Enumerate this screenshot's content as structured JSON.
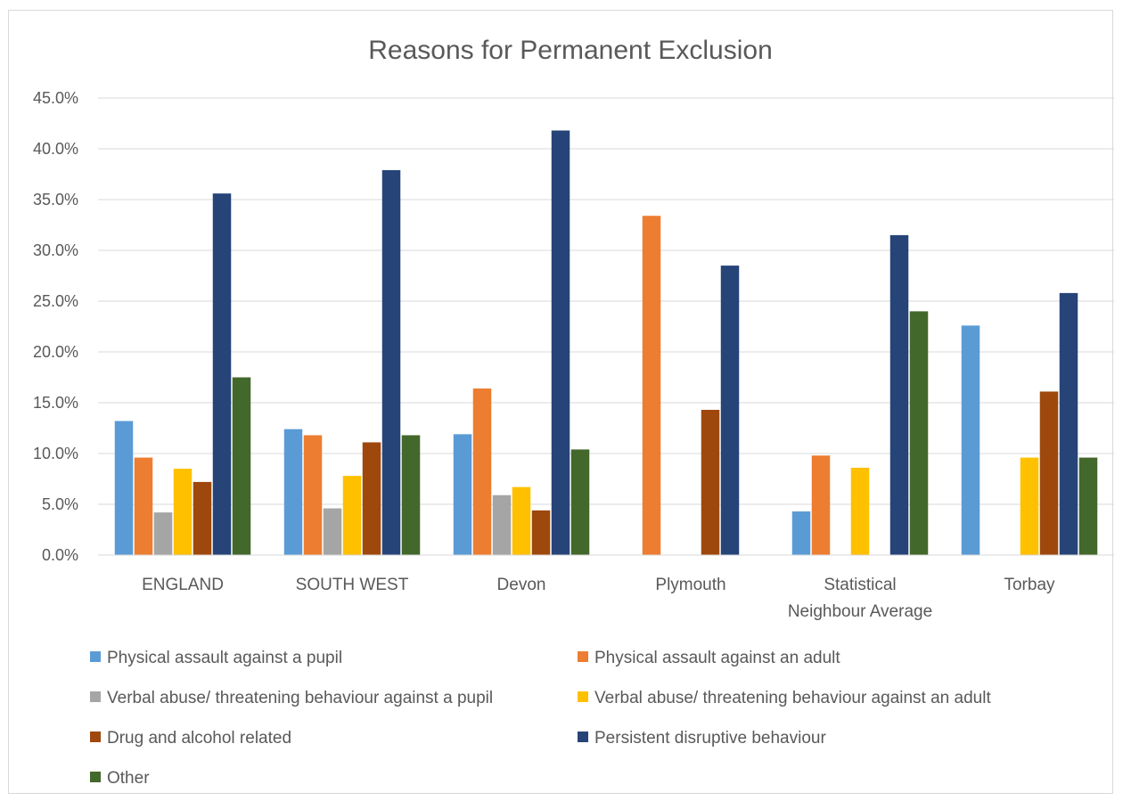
{
  "chart_data": {
    "type": "bar",
    "title": "Reasons for Permanent Exclusion",
    "categories": [
      [
        "ENGLAND"
      ],
      [
        "SOUTH WEST"
      ],
      [
        "Devon"
      ],
      [
        "Plymouth"
      ],
      [
        "Statistical",
        "Neighbour Average"
      ],
      [
        "Torbay"
      ]
    ],
    "ylim": [
      0,
      45
    ],
    "ytick_values": [
      0,
      5,
      10,
      15,
      20,
      25,
      30,
      35,
      40,
      45
    ],
    "ytick_labels": [
      "0.0%",
      "5.0%",
      "10.0%",
      "15.0%",
      "20.0%",
      "25.0%",
      "30.0%",
      "35.0%",
      "40.0%",
      "45.0%"
    ],
    "grid": true,
    "legend_position": "bottom",
    "series": [
      {
        "name": "Physical assault against a pupil",
        "color": "#5b9bd5",
        "values": [
          13.2,
          12.4,
          11.9,
          0,
          4.3,
          22.6
        ]
      },
      {
        "name": "Physical assault against an adult",
        "color": "#ed7d31",
        "values": [
          9.6,
          11.8,
          16.4,
          33.4,
          9.8,
          0
        ]
      },
      {
        "name": "Verbal abuse/ threatening behaviour against a pupil",
        "color": "#a5a5a5",
        "values": [
          4.2,
          4.6,
          5.9,
          0,
          0,
          0
        ]
      },
      {
        "name": "Verbal abuse/ threatening behaviour against an adult",
        "color": "#ffc000",
        "values": [
          8.5,
          7.8,
          6.7,
          0,
          8.6,
          9.6
        ]
      },
      {
        "name": "Drug and alcohol related",
        "color": "#9e480e",
        "values": [
          7.2,
          11.1,
          4.4,
          14.3,
          0,
          16.1
        ]
      },
      {
        "name": "Persistent disruptive behaviour",
        "color": "#264478",
        "values": [
          35.6,
          37.9,
          41.8,
          28.5,
          31.5,
          25.8
        ]
      },
      {
        "name": "Other",
        "color": "#43682b",
        "values": [
          17.5,
          11.8,
          10.4,
          0,
          24.0,
          9.6
        ]
      }
    ]
  }
}
